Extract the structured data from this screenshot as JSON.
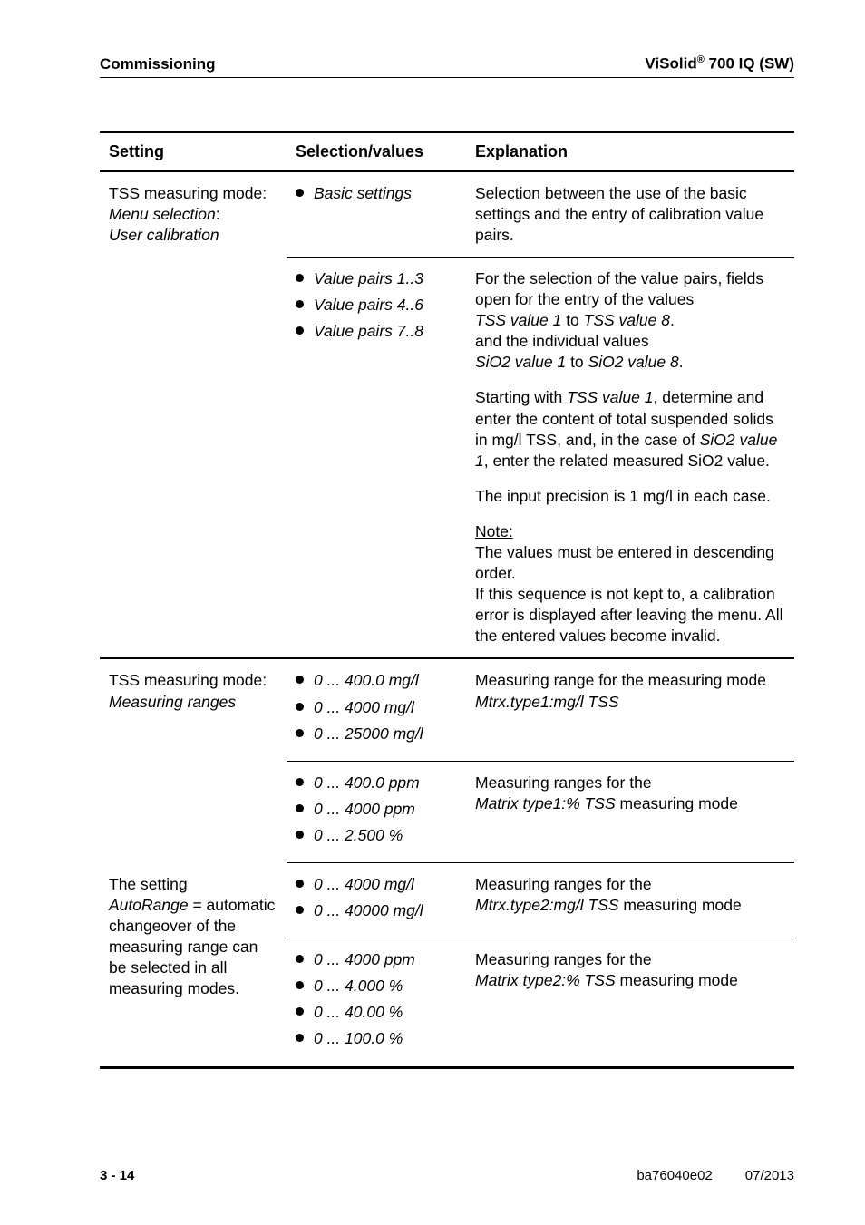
{
  "header": {
    "left": "Commissioning",
    "right_prefix": "ViSolid",
    "right_sup": "®",
    "right_suffix": " 700 IQ (SW)"
  },
  "table": {
    "headers": {
      "setting": "Setting",
      "selection": "Selection/values",
      "explanation": "Explanation"
    },
    "row1": {
      "setting_l1": "TSS measuring mode:",
      "setting_l2_it": "Menu selection",
      "setting_l2_tail": ":",
      "setting_l3_it": "User calibration",
      "sel_top_it": "Basic settings",
      "sel_b1_it": "Value pairs 1..3",
      "sel_b2_it": "Value pairs 4..6",
      "sel_b3_it": "Value pairs 7..8",
      "exp_p1": "Selection between the use of the basic settings and the entry of calibration value pairs.",
      "exp_p2_a": "For the selection of the value pairs, fields open for the entry of the values",
      "exp_p2_b_it": "TSS value 1",
      "exp_p2_c": " to ",
      "exp_p2_d_it": "TSS value 8",
      "exp_p2_e": ".",
      "exp_p2_f": "and the individual values",
      "exp_p2_g_it": "SiO2 value 1",
      "exp_p2_h": " to ",
      "exp_p2_i_it": "SiO2 value 8",
      "exp_p2_j": ".",
      "exp_p3_a": "Starting with ",
      "exp_p3_b_it": "TSS value 1",
      "exp_p3_c": ", determine and enter the content of total suspended solids in mg/l TSS, and, in the case of ",
      "exp_p3_d_it": "SiO2 value 1",
      "exp_p3_e": ", enter the related measured SiO2 value.",
      "exp_p4": "The input precision is 1 mg/l in each case.",
      "exp_note_u": "Note:",
      "exp_note_body": "The values must be entered in descending order.",
      "exp_note_body2": "If this sequence is not kept to, a calibration error is displayed after leaving the menu. All the entered values become invalid."
    },
    "row2": {
      "setting_l1": "TSS measuring mode:",
      "setting_l2_it": "Measuring ranges",
      "sel_b1_it": "0 ... 400.0 mg/l",
      "sel_b2_it": "0 ... 4000 mg/l",
      "sel_b3_it": "0 ... 25000 mg/l",
      "exp_a": "Measuring range for the measuring mode ",
      "exp_b_it": "Mtrx.type1:mg/l TSS"
    },
    "row3": {
      "setting_a": "The setting",
      "setting_b_it": "AutoRange",
      "setting_c": " = automatic changeover of the measuring range can be selected in all measuring modes.",
      "sel_b1_it": "0 ... 400.0 ppm",
      "sel_b2_it": "0 ... 4000 ppm",
      "sel_b3_it": "0 ... 2.500 %",
      "exp_a": "Measuring ranges for the",
      "exp_b_it": "Matrix type1:% TSS",
      "exp_c": " measuring mode"
    },
    "row4": {
      "sel_b1_it": "0 ... 4000 mg/l",
      "sel_b2_it": "0 ... 40000 mg/l",
      "exp_a": "Measuring ranges for the",
      "exp_b_it": "Mtrx.type2:mg/l TSS",
      "exp_c": " measuring mode"
    },
    "row5": {
      "sel_b1_it": "0 ... 4000 ppm",
      "sel_b2_it": "0 ... 4.000 %",
      "sel_b3_it": "0 ... 40.00 %",
      "sel_b4_it": "0 ... 100.0 %",
      "exp_a": "Measuring ranges for the",
      "exp_b_it": "Matrix type2:% TSS",
      "exp_c": " measuring mode"
    }
  },
  "footer": {
    "page": "3 - 14",
    "doc": "ba76040e02",
    "date": "07/2013"
  }
}
